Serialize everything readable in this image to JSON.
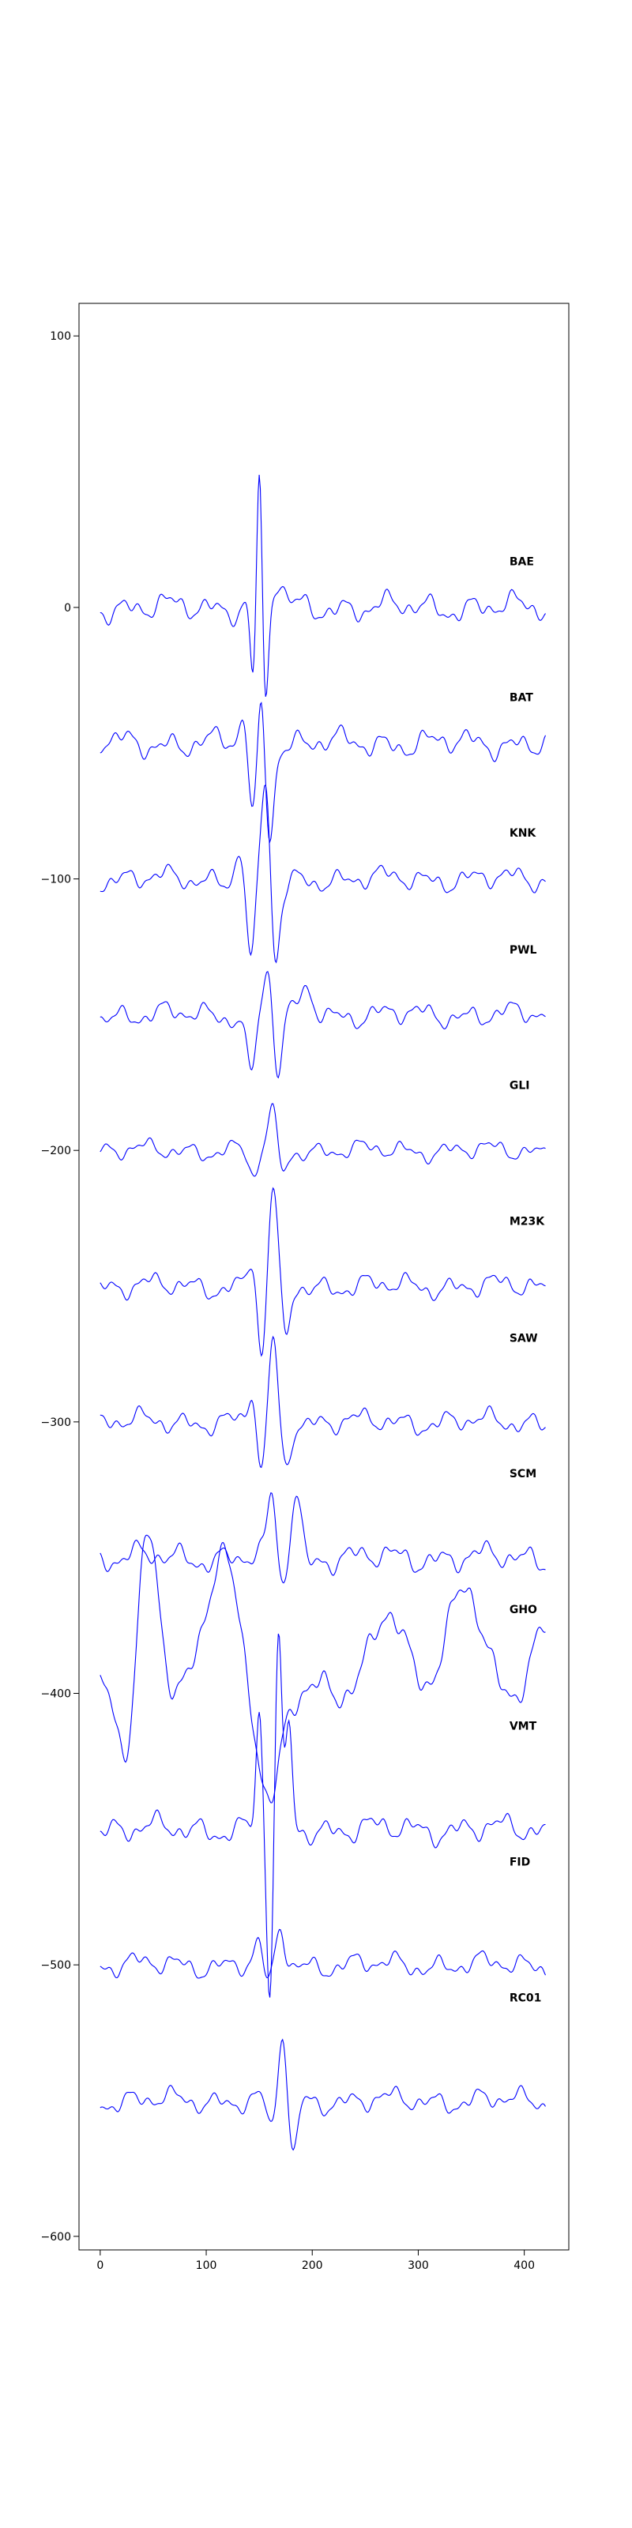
{
  "chart_data": {
    "type": "line",
    "title": "",
    "xlabel": "",
    "ylabel": "",
    "xlim": [
      -20,
      442
    ],
    "ylim": [
      -605,
      112
    ],
    "x_ticks": [
      0,
      100,
      200,
      300,
      400
    ],
    "y_ticks": [
      100,
      0,
      -100,
      -200,
      -300,
      -400,
      -500,
      -600
    ],
    "x_tick_labels": [
      "0",
      "100",
      "200",
      "300",
      "400"
    ],
    "y_tick_labels": [
      "100",
      "0",
      "−100",
      "−200",
      "−300",
      "−400",
      "−500",
      "−600"
    ],
    "line_color": "#0000ff",
    "grid": false,
    "legend": "none",
    "label_x": 386,
    "sample_count": 421,
    "stations": [
      "BAE",
      "BAT",
      "KNK",
      "PWL",
      "GLI",
      "M23K",
      "SAW",
      "SCM",
      "GHO",
      "VMT",
      "FID",
      "RC01"
    ],
    "series": [
      {
        "offset": 0,
        "label_y": 17,
        "amplitude": "high",
        "features": [
          [
            142,
            20,
            4
          ],
          [
            150,
            80,
            3
          ],
          [
            145,
            -55,
            4
          ],
          [
            155,
            -48,
            3
          ],
          [
            168,
            9,
            5
          ]
        ]
      },
      {
        "offset": -50,
        "label_y": -33,
        "amplitude": "high",
        "features": [
          [
            137,
            -35,
            4
          ],
          [
            143,
            -82,
            4
          ],
          [
            152,
            -30,
            3
          ],
          [
            160,
            -82,
            4
          ]
        ]
      },
      {
        "offset": -100,
        "label_y": -83,
        "amplitude": "medium",
        "features": [
          [
            132,
            -88,
            4
          ],
          [
            142,
            -132,
            4
          ],
          [
            156,
            -62,
            4
          ],
          [
            165,
            -132,
            4
          ],
          [
            175,
            -104,
            5
          ]
        ]
      },
      {
        "offset": -150,
        "label_y": -126,
        "amplitude": "medium",
        "features": [
          [
            142,
            -172,
            4
          ],
          [
            158,
            -133,
            4
          ],
          [
            168,
            -172,
            4
          ],
          [
            195,
            -141,
            6
          ]
        ]
      },
      {
        "offset": -200,
        "label_y": -176,
        "amplitude": "low",
        "features": [
          [
            145,
            -210,
            4
          ],
          [
            162,
            -186,
            4
          ],
          [
            172,
            -208,
            4
          ]
        ]
      },
      {
        "offset": -250,
        "label_y": -226,
        "amplitude": "medium",
        "features": [
          [
            144,
            -238,
            4
          ],
          [
            152,
            -278,
            4
          ],
          [
            163,
            -214,
            4
          ],
          [
            175,
            -270,
            4
          ]
        ]
      },
      {
        "offset": -300,
        "label_y": -269,
        "amplitude": "medium",
        "features": [
          [
            144,
            -288,
            4
          ],
          [
            152,
            -322,
            4
          ],
          [
            163,
            -270,
            4
          ],
          [
            175,
            -316,
            4
          ]
        ]
      },
      {
        "offset": -350,
        "label_y": -319,
        "amplitude": "high",
        "features": [
          [
            162,
            -328,
            4
          ],
          [
            172,
            -362,
            4
          ],
          [
            185,
            -325,
            5
          ],
          [
            195,
            -354,
            4
          ]
        ]
      },
      {
        "offset": -400,
        "label_y": -369,
        "amplitude": "extreme",
        "features": [
          [
            25,
            -425,
            8
          ],
          [
            45,
            -340,
            10
          ],
          [
            115,
            -348,
            14
          ],
          [
            160,
            -440,
            10
          ],
          [
            270,
            -368,
            15
          ],
          [
            345,
            -358,
            15
          ],
          [
            420,
            -378,
            10
          ]
        ]
      },
      {
        "offset": -450,
        "label_y": -412,
        "amplitude": "high",
        "features": [
          [
            150,
            -408,
            3
          ],
          [
            160,
            -513,
            3
          ],
          [
            168,
            -380,
            3
          ],
          [
            178,
            -412,
            3
          ]
        ]
      },
      {
        "offset": -500,
        "label_y": -462,
        "amplitude": "medium",
        "features": [
          [
            150,
            -492,
            4
          ],
          [
            158,
            -510,
            4
          ],
          [
            170,
            -486,
            4
          ]
        ]
      },
      {
        "offset": -550,
        "label_y": -512,
        "amplitude": "medium",
        "features": [
          [
            162,
            -562,
            4
          ],
          [
            172,
            -524,
            4
          ],
          [
            182,
            -572,
            4
          ]
        ]
      }
    ]
  }
}
